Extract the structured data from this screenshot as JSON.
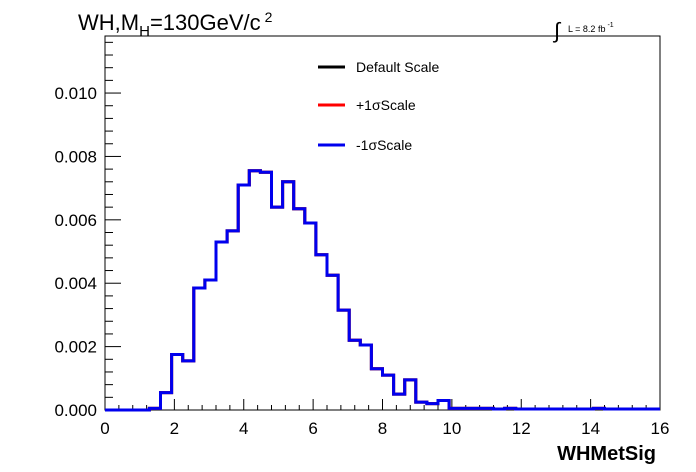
{
  "chart_data": {
    "type": "line",
    "title": {
      "main": "WH,M",
      "sub": "H",
      "eq": "=130GeV/c",
      "sup": "2"
    },
    "lumi": {
      "integral": "∫",
      "text": "L = 8.2 fb",
      "sup": "-1"
    },
    "xlabel": "WHMetSig",
    "ylabel": "",
    "xlim": [
      0,
      16
    ],
    "ylim": [
      0,
      0.0118
    ],
    "x_ticks": [
      {
        "value": 0,
        "label": "0"
      },
      {
        "value": 2,
        "label": "2"
      },
      {
        "value": 4,
        "label": "4"
      },
      {
        "value": 6,
        "label": "6"
      },
      {
        "value": 8,
        "label": "8"
      },
      {
        "value": 10,
        "label": "10"
      },
      {
        "value": 12,
        "label": "12"
      },
      {
        "value": 14,
        "label": "14"
      },
      {
        "value": 16,
        "label": "16"
      }
    ],
    "y_ticks": [
      {
        "value": 0.0,
        "label": "0.000"
      },
      {
        "value": 0.002,
        "label": "0.002"
      },
      {
        "value": 0.004,
        "label": "0.004"
      },
      {
        "value": 0.006,
        "label": "0.006"
      },
      {
        "value": 0.008,
        "label": "0.008"
      },
      {
        "value": 0.01,
        "label": "0.010"
      }
    ],
    "bin_width": 0.32,
    "bin_edges_start": 0,
    "series": [
      {
        "name": "Default Scale",
        "color": "#000000",
        "values": [
          0,
          0,
          0,
          0,
          5e-05,
          0.00055,
          0.00175,
          0.00155,
          0.00385,
          0.0041,
          0.0053,
          0.00565,
          0.0071,
          0.00755,
          0.0075,
          0.0064,
          0.0072,
          0.00635,
          0.0059,
          0.0049,
          0.00425,
          0.00315,
          0.0022,
          0.00205,
          0.0013,
          0.0011,
          0.0005,
          0.00095,
          0.00025,
          0.0002,
          0.0003,
          5e-05,
          5e-05,
          5e-05,
          5e-05,
          3e-05,
          5e-05,
          3e-05,
          3e-05,
          3e-05,
          3e-05,
          3e-05,
          3e-05,
          3e-05,
          5e-05,
          3e-05,
          3e-05,
          3e-05,
          3e-05,
          3e-05
        ]
      },
      {
        "name": "+1σScale",
        "color": "#ff0000",
        "values": [
          0,
          0,
          0,
          0,
          5e-05,
          0.00055,
          0.00175,
          0.00155,
          0.00385,
          0.0041,
          0.0053,
          0.00565,
          0.0071,
          0.00755,
          0.0075,
          0.0064,
          0.0072,
          0.00635,
          0.0059,
          0.0049,
          0.00425,
          0.00315,
          0.0022,
          0.00205,
          0.0013,
          0.0011,
          0.0005,
          0.00095,
          0.00025,
          0.0002,
          0.0003,
          5e-05,
          5e-05,
          5e-05,
          5e-05,
          3e-05,
          5e-05,
          3e-05,
          3e-05,
          3e-05,
          3e-05,
          3e-05,
          3e-05,
          3e-05,
          5e-05,
          3e-05,
          3e-05,
          3e-05,
          3e-05,
          3e-05
        ]
      },
      {
        "name": "-1σScale",
        "color": "#0000ee",
        "values": [
          0,
          0,
          0,
          0,
          5e-05,
          0.00055,
          0.00175,
          0.00155,
          0.00385,
          0.0041,
          0.0053,
          0.00565,
          0.0071,
          0.00755,
          0.0075,
          0.0064,
          0.0072,
          0.00635,
          0.0059,
          0.0049,
          0.00425,
          0.00315,
          0.0022,
          0.00205,
          0.0013,
          0.0011,
          0.0005,
          0.00095,
          0.00025,
          0.0002,
          0.0003,
          5e-05,
          5e-05,
          5e-05,
          5e-05,
          3e-05,
          5e-05,
          3e-05,
          3e-05,
          3e-05,
          3e-05,
          3e-05,
          3e-05,
          3e-05,
          5e-05,
          3e-05,
          3e-05,
          3e-05,
          3e-05,
          3e-05
        ]
      }
    ],
    "legend_position": "top-center",
    "grid": false
  }
}
